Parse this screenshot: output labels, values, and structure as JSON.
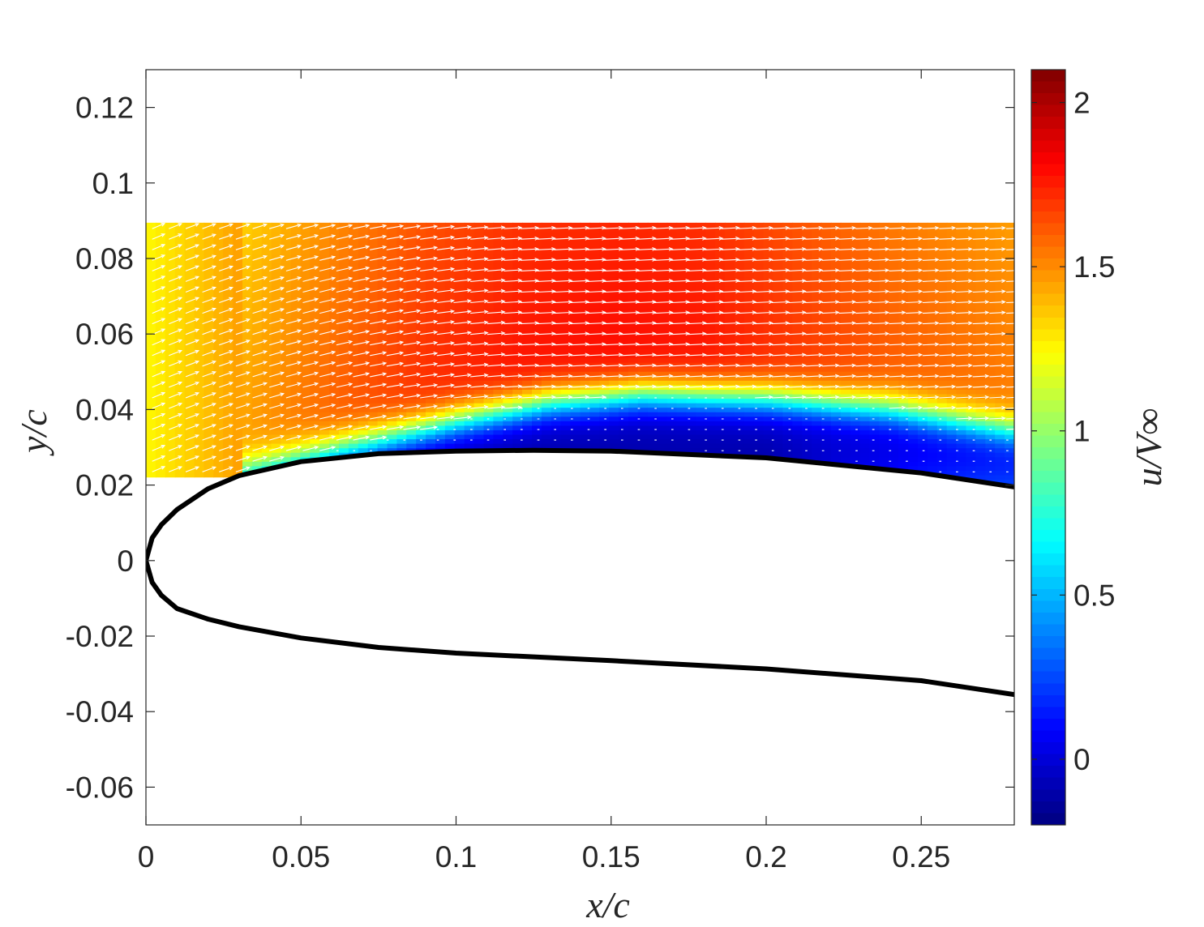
{
  "chart_data": {
    "type": "heatmap",
    "title": "",
    "xlabel": "x/c",
    "ylabel": "y/c",
    "colorbar_label": "u/V∞",
    "xlim": [
      0,
      0.28
    ],
    "ylim": [
      -0.07,
      0.13
    ],
    "x_ticks": [
      0,
      0.05,
      0.1,
      0.15,
      0.2,
      0.25
    ],
    "x_tick_labels": [
      "0",
      "0.05",
      "0.1",
      "0.15",
      "0.2",
      "0.25"
    ],
    "y_ticks": [
      -0.06,
      -0.04,
      -0.02,
      0,
      0.02,
      0.04,
      0.06,
      0.08,
      0.1,
      0.12
    ],
    "y_tick_labels": [
      "-0.06",
      "-0.04",
      "-0.02",
      "0",
      "0.02",
      "0.04",
      "0.06",
      "0.08",
      "0.1",
      "0.12"
    ],
    "colorbar": {
      "colormap": "jet",
      "clim": [
        -0.2,
        2.1
      ],
      "ticks": [
        0,
        0.5,
        1,
        1.5,
        2
      ],
      "tick_labels": [
        "0",
        "0.5",
        "1",
        "1.5",
        "2"
      ]
    },
    "field_domain": {
      "x": [
        0,
        0.28
      ],
      "y_top": 0.0895,
      "y_bottom_at_x0": 0.022
    },
    "airfoil_upper": {
      "x": [
        0,
        0.002,
        0.005,
        0.01,
        0.02,
        0.03,
        0.05,
        0.075,
        0.1,
        0.125,
        0.15,
        0.2,
        0.25,
        0.28
      ],
      "y": [
        0,
        0.006,
        0.0095,
        0.0135,
        0.019,
        0.0225,
        0.0262,
        0.0283,
        0.029,
        0.0292,
        0.029,
        0.0272,
        0.0232,
        0.0195
      ]
    },
    "airfoil_lower": {
      "x": [
        0,
        0.002,
        0.005,
        0.01,
        0.02,
        0.03,
        0.05,
        0.075,
        0.1,
        0.15,
        0.2,
        0.25,
        0.28
      ],
      "y": [
        0,
        -0.0058,
        -0.0092,
        -0.0127,
        -0.0155,
        -0.0175,
        -0.0205,
        -0.023,
        -0.0245,
        -0.0265,
        -0.0287,
        -0.0318,
        -0.0355
      ]
    },
    "separated_region": {
      "x": [
        0.03,
        0.06,
        0.1,
        0.13,
        0.16,
        0.2,
        0.24,
        0.28
      ],
      "shear_layer_y": [
        0.0225,
        0.029,
        0.037,
        0.042,
        0.044,
        0.043,
        0.04,
        0.034
      ]
    },
    "velocity_samples": {
      "x": [
        0.0,
        0.03,
        0.06,
        0.09,
        0.12,
        0.15,
        0.18,
        0.21,
        0.24,
        0.28
      ],
      "u_outer": [
        1.35,
        1.45,
        1.6,
        1.72,
        1.78,
        1.8,
        1.78,
        1.7,
        1.62,
        1.55
      ],
      "u_reversed": -0.1
    },
    "vector_arrows": {
      "color": "#ffffff",
      "direction": "downstream, inclined upward near leading edge"
    }
  }
}
